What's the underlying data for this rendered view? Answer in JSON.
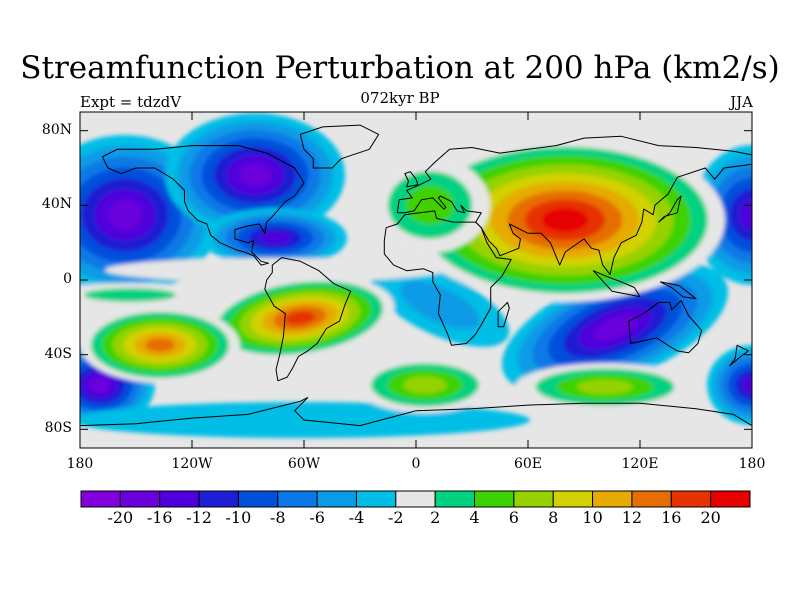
{
  "title": "Streamfunction Perturbation at 200 hPa (km2/s)",
  "left_label": "Expt = tdzdV",
  "center_label": "072kyr BP",
  "right_label": "JJA",
  "lat_ticks": [
    "80N",
    "40N",
    "0",
    "40S",
    "80S"
  ],
  "lon_ticks": [
    "180",
    "120W",
    "60W",
    "0",
    "60E",
    "120E",
    "180"
  ],
  "colorbar": {
    "labels": [
      "-20",
      "-16",
      "-12",
      "-10",
      "-8",
      "-6",
      "-4",
      "-2",
      "2",
      "4",
      "6",
      "8",
      "10",
      "12",
      "16",
      "20"
    ],
    "colors": [
      "#8200dc",
      "#6a00dc",
      "#5000dc",
      "#1e1ed2",
      "#0050dc",
      "#0a78e6",
      "#0a9be6",
      "#00bee6",
      "#e6e6e6",
      "#00d282",
      "#3cd200",
      "#96d200",
      "#d2d200",
      "#e6aa00",
      "#e66e00",
      "#e63200",
      "#e60000"
    ]
  },
  "colors": {
    "land_outline": "#000000",
    "neutral": "#e6e6e6"
  }
}
